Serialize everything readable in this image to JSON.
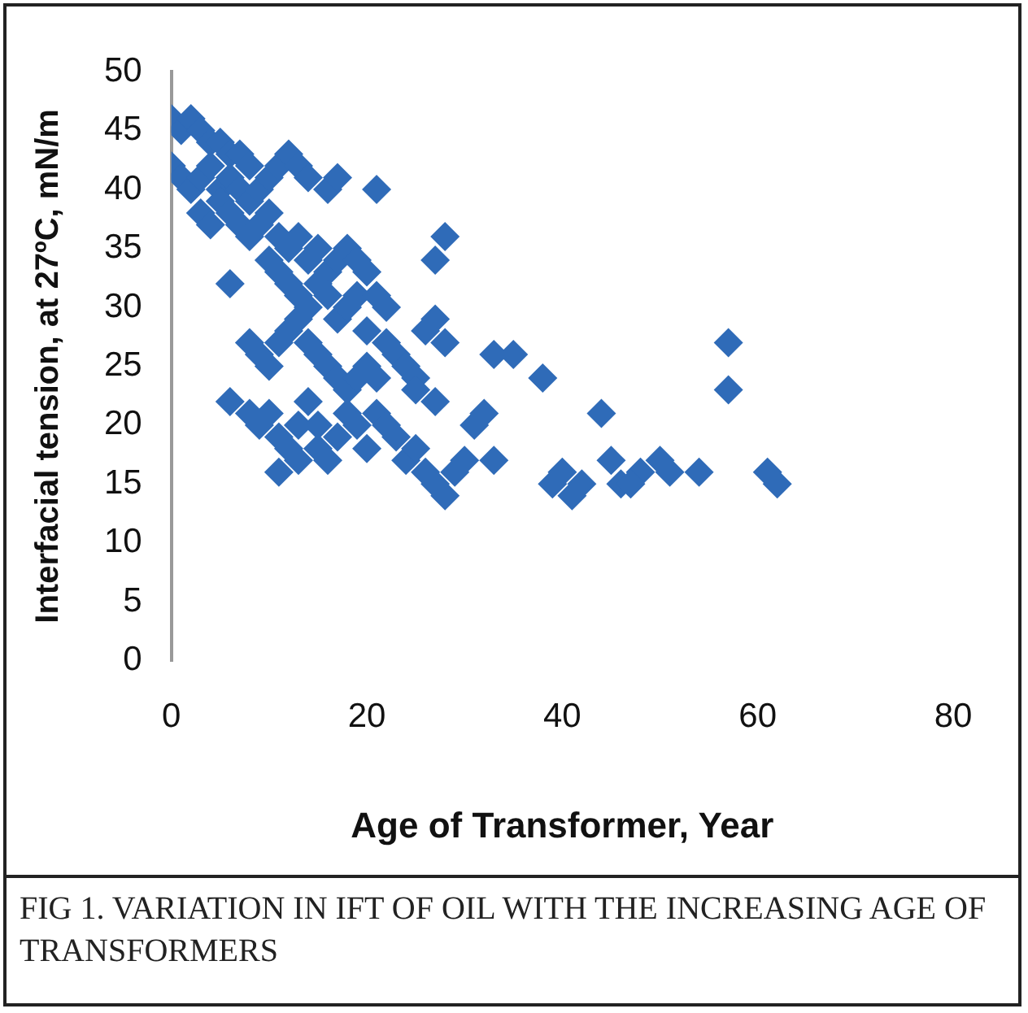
{
  "chart_data": {
    "type": "scatter",
    "xlabel": "Age of Transformer, Year",
    "ylabel": "Interfacial tension, at 27ºC, mN/m",
    "xlim": [
      0,
      80
    ],
    "xticks": [
      0,
      20,
      40,
      60,
      80
    ],
    "ylim": [
      0,
      50
    ],
    "yticks": [
      0,
      5,
      10,
      15,
      20,
      25,
      30,
      35,
      40,
      45,
      50
    ],
    "grid": false,
    "legend": false,
    "marker": "diamond",
    "annotations": [
      "FIG 1.    VARIATION IN IFT OF OIL WITH THE INCREASING AGE OF TRANSFORMERS"
    ],
    "series": [
      {
        "color": "#2f6bb8",
        "x": [
          0,
          1,
          2,
          3,
          4,
          5,
          6,
          7,
          8,
          0,
          1,
          2,
          3,
          4,
          5,
          6,
          7,
          8,
          9,
          10,
          11,
          12,
          13,
          14,
          16,
          17,
          21,
          3,
          4,
          5,
          6,
          7,
          8,
          9,
          10,
          11,
          12,
          13,
          14,
          15,
          16,
          17,
          18,
          19,
          20,
          10,
          11,
          12,
          13,
          14,
          15,
          16,
          17,
          18,
          19,
          20,
          6,
          21,
          22,
          27,
          28,
          8,
          9,
          10,
          11,
          12,
          13,
          14,
          15,
          16,
          17,
          18,
          19,
          20,
          21,
          22,
          23,
          24,
          25,
          26,
          27,
          28,
          6,
          8,
          9,
          10,
          11,
          12,
          13,
          14,
          15,
          16,
          17,
          18,
          19,
          20,
          21,
          22,
          23,
          24,
          25,
          26,
          27,
          28,
          29,
          30,
          31,
          32,
          33,
          27,
          25,
          11,
          13,
          15,
          33,
          35,
          38,
          40,
          41,
          42,
          44,
          45,
          46,
          48,
          50,
          51,
          54,
          57,
          57,
          61,
          62,
          39,
          47
        ],
        "values": [
          46,
          45,
          46,
          45,
          44,
          44,
          43,
          43,
          42,
          42,
          41,
          40,
          41,
          42,
          40,
          41,
          40,
          39,
          40,
          41,
          42,
          43,
          42,
          41,
          40,
          41,
          40,
          38,
          37,
          39,
          38,
          37,
          36,
          37,
          38,
          36,
          35,
          36,
          34,
          35,
          33,
          34,
          35,
          34,
          33,
          34,
          33,
          32,
          31,
          30,
          32,
          31,
          29,
          30,
          31,
          28,
          32,
          31,
          30,
          34,
          36,
          27,
          26,
          25,
          27,
          28,
          29,
          27,
          26,
          25,
          24,
          23,
          24,
          25,
          24,
          27,
          26,
          25,
          24,
          28,
          29,
          27,
          22,
          21,
          20,
          21,
          19,
          18,
          20,
          22,
          18,
          17,
          19,
          21,
          20,
          18,
          21,
          20,
          19,
          17,
          18,
          16,
          15,
          14,
          16,
          17,
          20,
          21,
          17,
          22,
          23,
          16,
          17,
          20,
          26,
          26,
          24,
          16,
          14,
          15,
          21,
          17,
          15,
          16,
          17,
          16,
          16,
          27,
          23,
          16,
          15,
          15,
          15
        ]
      }
    ]
  }
}
